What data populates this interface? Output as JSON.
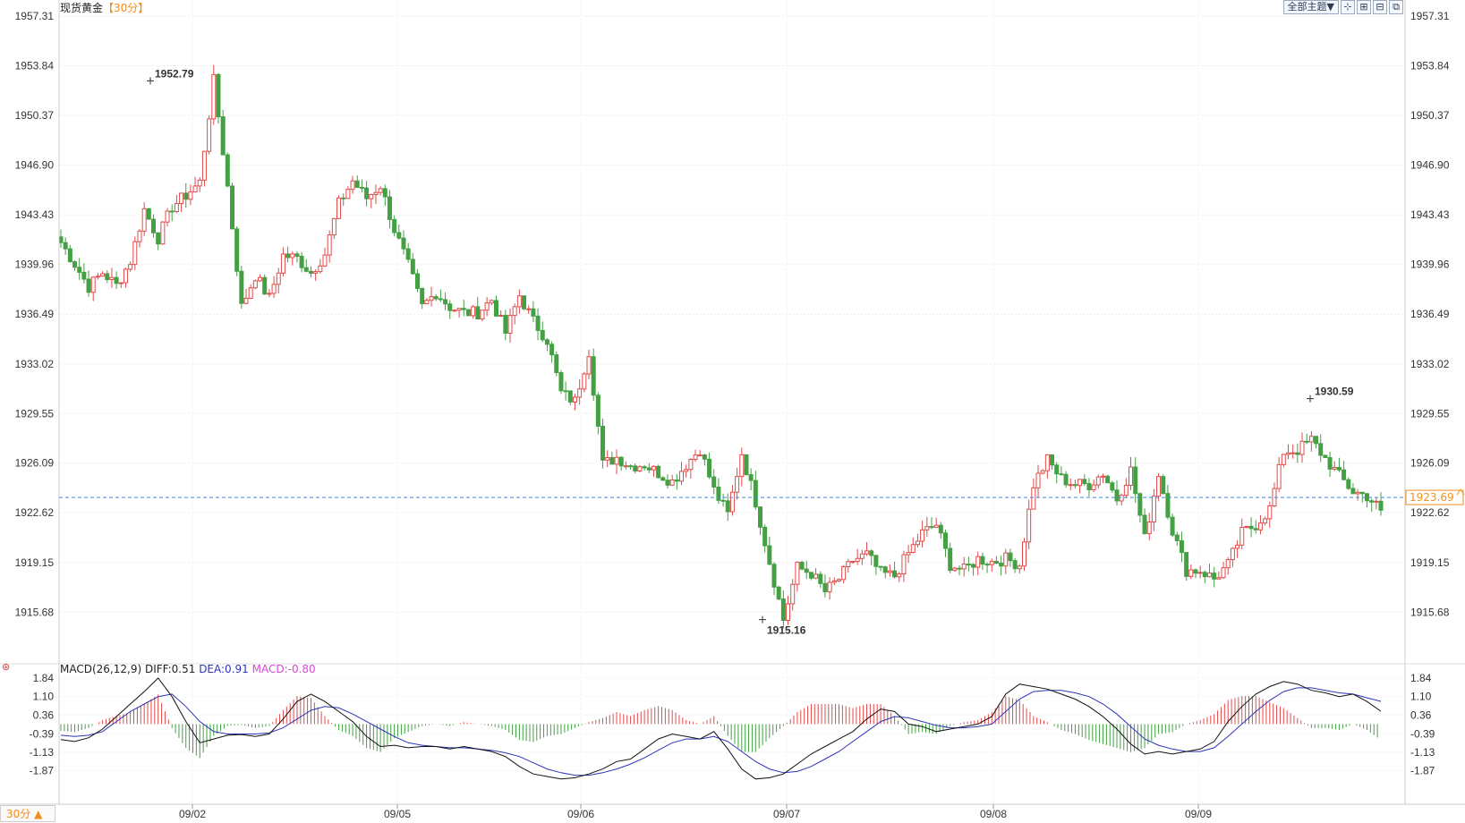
{
  "header": {
    "symbol": "现货黄金",
    "period_tag": "【30分】",
    "theme_button": "全部主题▼",
    "toolbar_icons": [
      "crosshair-icon",
      "zoom-in-icon",
      "zoom-out-icon",
      "restore-icon"
    ]
  },
  "period_button": "30分 ▲",
  "current_price": "1923.69",
  "colors": {
    "up": "#e04b4b",
    "down": "#43a043",
    "diff": "#111111",
    "dea": "#2c35b8",
    "macd": "#d946d9",
    "current": "#f0901e",
    "current_line": "#3a8be0"
  },
  "chart_data": [
    {
      "type": "candlestick",
      "y_ticks": [
        "1957.31",
        "1953.84",
        "1950.37",
        "1946.90",
        "1943.43",
        "1939.96",
        "1936.49",
        "1933.02",
        "1929.55",
        "1926.09",
        "1922.62",
        "1919.15",
        "1915.68"
      ],
      "ylim": [
        1912.2,
        1957.31
      ],
      "x_ticks": [
        "09/02",
        "09/05",
        "09/06",
        "09/07",
        "09/08",
        "09/09"
      ],
      "annotations": [
        {
          "label": "1952.79",
          "value": 1952.79,
          "kind": "high"
        },
        {
          "label": "1915.16",
          "value": 1915.16,
          "kind": "low"
        },
        {
          "label": "1930.59",
          "value": 1930.59,
          "kind": "high"
        }
      ],
      "anchors": [
        1941.5,
        1940.0,
        1938.4,
        1939.4,
        1938.5,
        1940.2,
        1943.8,
        1941.8,
        1944.0,
        1944.8,
        1945.7,
        1952.79,
        1945.4,
        1937.0,
        1939.2,
        1937.6,
        1940.6,
        1940.4,
        1939.4,
        1940.7,
        1944.2,
        1945.8,
        1944.6,
        1945.5,
        1942.4,
        1939.9,
        1937.0,
        1938.0,
        1937.0,
        1936.6,
        1936.6,
        1937.5,
        1935.2,
        1937.8,
        1936.0,
        1934.7,
        1931.0,
        1930.4,
        1933.9,
        1926.0,
        1926.5,
        1925.9,
        1926.0,
        1925.4,
        1924.8,
        1926.0,
        1927.1,
        1924.2,
        1922.5,
        1926.8,
        1923.4,
        1919.2,
        1915.16,
        1918.8,
        1918.4,
        1917.1,
        1918.0,
        1919.3,
        1919.7,
        1918.4,
        1918.2,
        1919.8,
        1921.2,
        1921.8,
        1919.0,
        1918.6,
        1919.4,
        1919.2,
        1919.4,
        1919.0,
        1924.6,
        1926.3,
        1925.0,
        1924.6,
        1924.6,
        1925.4,
        1923.6,
        1925.6,
        1920.8,
        1925.4,
        1921.4,
        1918.6,
        1918.6,
        1918.0,
        1919.0,
        1921.2,
        1921.8,
        1922.9,
        1926.9,
        1927.0,
        1927.7,
        1926.4,
        1925.2,
        1924.1,
        1923.8,
        1922.8
      ],
      "macd": {
        "legend": [
          "MACD(26,12,9)",
          "DIFF:0.51",
          "DEA:0.91",
          "MACD:-0.80"
        ],
        "y_ticks": [
          "1.84",
          "1.10",
          "0.36",
          "-0.39",
          "-1.13",
          "-1.87"
        ],
        "ylim": [
          -2.35,
          1.84
        ],
        "diff": [
          -0.62,
          -0.7,
          -0.55,
          -0.2,
          0.3,
          0.8,
          1.3,
          1.84,
          1.1,
          0.1,
          -0.75,
          -0.6,
          -0.45,
          -0.42,
          -0.5,
          -0.4,
          0.2,
          0.9,
          1.2,
          0.9,
          0.5,
          0.1,
          -0.5,
          -0.9,
          -0.85,
          -0.95,
          -0.9,
          -0.9,
          -1.0,
          -0.9,
          -1.0,
          -1.1,
          -1.3,
          -1.7,
          -2.0,
          -2.1,
          -2.2,
          -2.15,
          -2.0,
          -1.8,
          -1.5,
          -1.4,
          -1.0,
          -0.6,
          -0.4,
          -0.5,
          -0.6,
          -0.3,
          -1.0,
          -1.8,
          -2.2,
          -2.15,
          -2.0,
          -1.6,
          -1.2,
          -0.9,
          -0.6,
          -0.3,
          0.2,
          0.6,
          0.5,
          0.0,
          -0.1,
          -0.3,
          -0.2,
          -0.1,
          0.0,
          0.3,
          1.2,
          1.6,
          1.5,
          1.4,
          1.2,
          1.0,
          0.7,
          0.3,
          -0.2,
          -0.8,
          -1.2,
          -1.1,
          -1.2,
          -1.1,
          -1.0,
          -0.7,
          0.1,
          0.7,
          1.2,
          1.5,
          1.7,
          1.6,
          1.35,
          1.25,
          1.1,
          1.2,
          0.9,
          0.51
        ],
        "dea": [
          -0.45,
          -0.5,
          -0.45,
          -0.3,
          0.1,
          0.5,
          0.8,
          1.1,
          1.2,
          0.7,
          0.1,
          -0.3,
          -0.4,
          -0.4,
          -0.4,
          -0.35,
          -0.15,
          0.2,
          0.55,
          0.7,
          0.65,
          0.4,
          0.1,
          -0.2,
          -0.5,
          -0.75,
          -0.85,
          -0.9,
          -0.95,
          -0.95,
          -1.0,
          -1.05,
          -1.15,
          -1.3,
          -1.55,
          -1.8,
          -1.95,
          -2.05,
          -2.05,
          -1.95,
          -1.8,
          -1.6,
          -1.35,
          -1.05,
          -0.75,
          -0.6,
          -0.6,
          -0.5,
          -0.7,
          -1.1,
          -1.5,
          -1.8,
          -1.95,
          -1.9,
          -1.7,
          -1.4,
          -1.1,
          -0.7,
          -0.3,
          0.1,
          0.3,
          0.25,
          0.1,
          -0.05,
          -0.15,
          -0.15,
          -0.1,
          0.0,
          0.5,
          1.0,
          1.3,
          1.35,
          1.35,
          1.25,
          1.1,
          0.8,
          0.4,
          -0.1,
          -0.6,
          -0.85,
          -1.0,
          -1.1,
          -1.1,
          -0.95,
          -0.5,
          0.0,
          0.5,
          0.95,
          1.3,
          1.45,
          1.45,
          1.35,
          1.25,
          1.2,
          1.05,
          0.91
        ]
      }
    }
  ]
}
